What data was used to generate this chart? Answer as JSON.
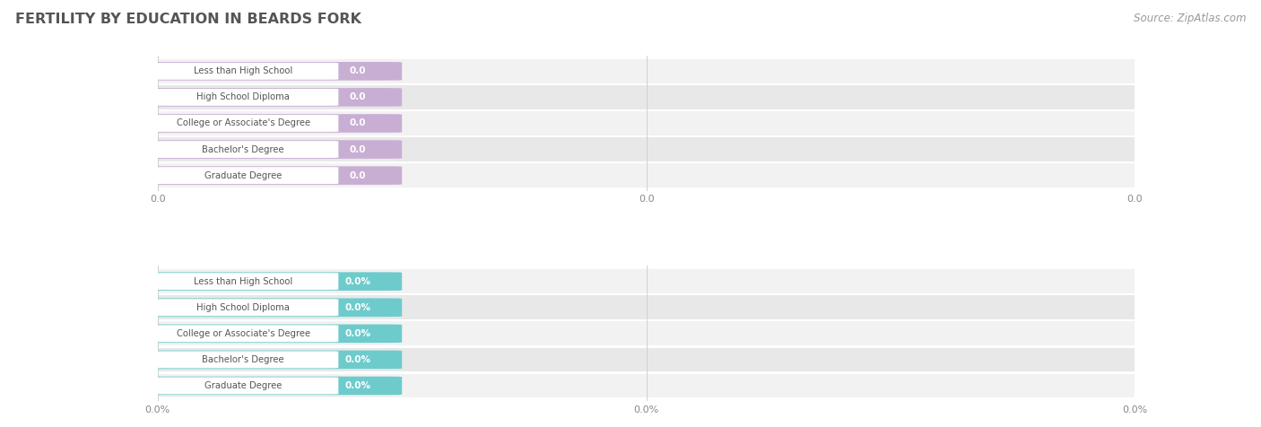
{
  "title": "FERTILITY BY EDUCATION IN BEARDS FORK",
  "source": "Source: ZipAtlas.com",
  "categories": [
    "Less than High School",
    "High School Diploma",
    "College or Associate's Degree",
    "Bachelor's Degree",
    "Graduate Degree"
  ],
  "values_top": [
    0.0,
    0.0,
    0.0,
    0.0,
    0.0
  ],
  "values_bottom": [
    0.0,
    0.0,
    0.0,
    0.0,
    0.0
  ],
  "bar_color_top": "#c9aed4",
  "bar_color_bottom": "#6ecbcc",
  "label_text_color": "#555555",
  "value_text_color": "#ffffff",
  "row_bg_light": "#f2f2f2",
  "row_bg_dark": "#e8e8e8",
  "background_color": "#ffffff",
  "title_color": "#555555",
  "grid_color": "#d0d0d0",
  "xtick_labels_top": [
    "0.0",
    "0.0",
    "0.0"
  ],
  "xtick_labels_bottom": [
    "0.0%",
    "0.0%",
    "0.0%"
  ],
  "figsize": [
    14.06,
    4.76
  ],
  "dpi": 100
}
